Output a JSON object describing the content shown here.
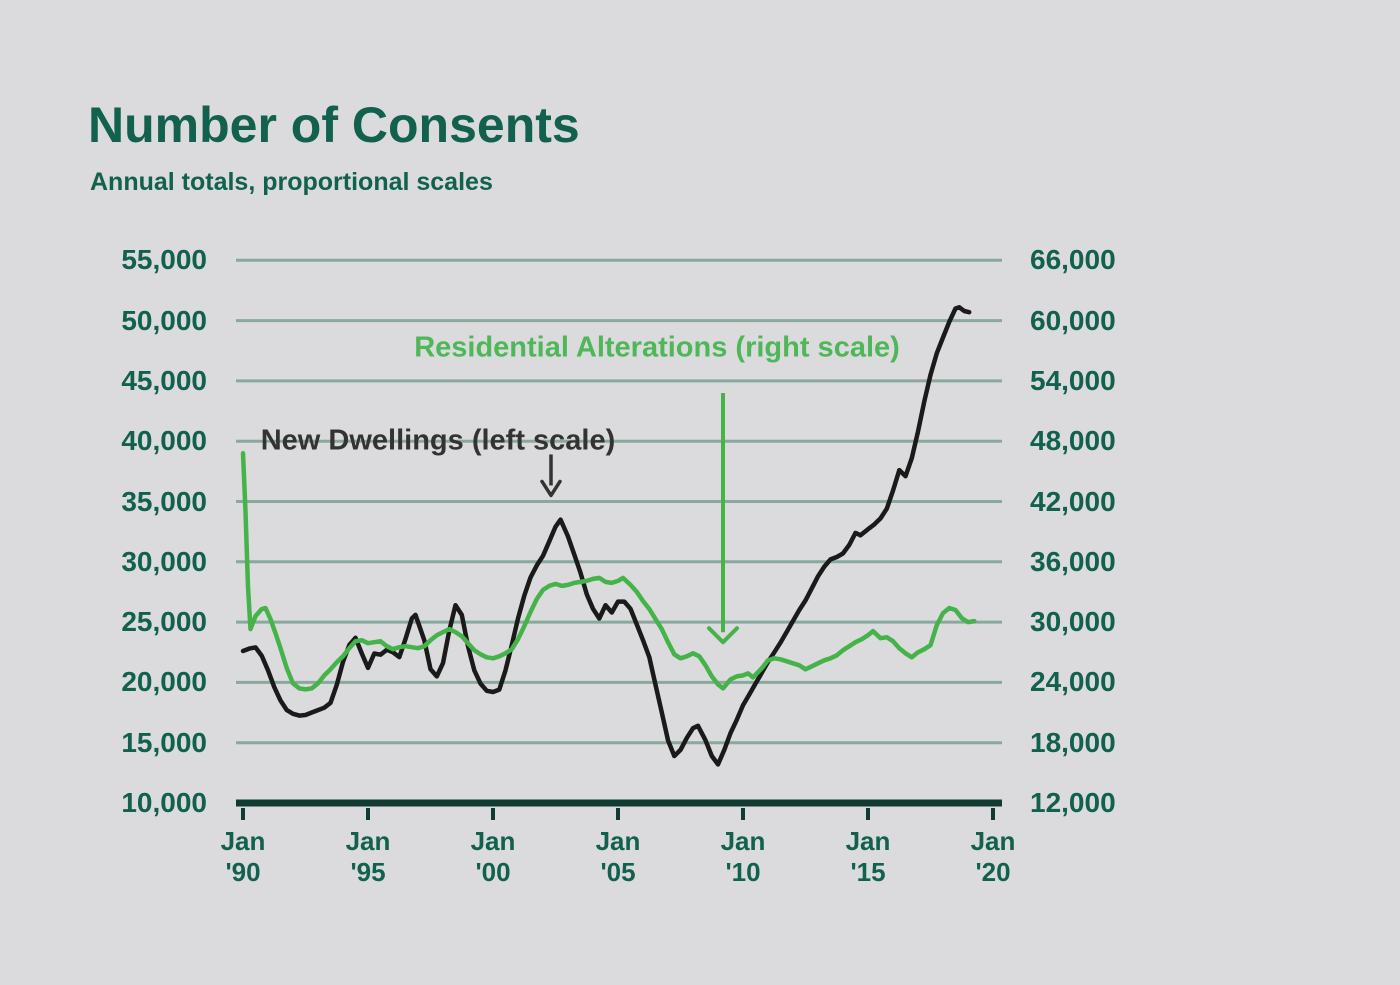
{
  "header": {
    "title": "Number of Consents",
    "subtitle": "Annual totals, proportional scales"
  },
  "colors": {
    "background": "#dbdbdd",
    "heading_text": "#11614e",
    "gridline": "#8aa89c",
    "axis_line": "#113a31",
    "new_dwellings_line": "#1a1a1a",
    "residential_alterations_line": "#45b349",
    "green_label_text": "#4eb757",
    "black_label_text": "#333333"
  },
  "chart_data": {
    "type": "line",
    "title": "Number of Consents",
    "subtitle": "Annual totals, proportional scales",
    "grid": true,
    "legend_position": "inline-annotations",
    "left_axis": {
      "labels": [
        "55,000",
        "50,000",
        "45,000",
        "40,000",
        "35,000",
        "30,000",
        "25,000",
        "20,000",
        "15,000",
        "10,000"
      ],
      "values": [
        55000,
        50000,
        45000,
        40000,
        35000,
        30000,
        25000,
        20000,
        15000,
        10000
      ],
      "range": [
        10000,
        55000
      ]
    },
    "right_axis": {
      "labels": [
        "66,000",
        "60,000",
        "54,000",
        "48,000",
        "42,000",
        "36,000",
        "30,000",
        "24,000",
        "18,000",
        "12,000"
      ],
      "values": [
        66000,
        60000,
        54000,
        48000,
        42000,
        36000,
        30000,
        24000,
        18000,
        12000
      ],
      "range": [
        12000,
        66000
      ]
    },
    "x_axis": {
      "range_years": [
        1990,
        2020
      ],
      "ticks": [
        {
          "line1": "Jan",
          "line2": "'90",
          "year": 1990
        },
        {
          "line1": "Jan",
          "line2": "'95",
          "year": 1995
        },
        {
          "line1": "Jan",
          "line2": "'00",
          "year": 2000
        },
        {
          "line1": "Jan",
          "line2": "'05",
          "year": 2005
        },
        {
          "line1": "Jan",
          "line2": "'10",
          "year": 2010
        },
        {
          "line1": "Jan",
          "line2": "'15",
          "year": 2015
        },
        {
          "line1": "Jan",
          "line2": "'20",
          "year": 2020
        }
      ]
    },
    "annotations": {
      "green_label": {
        "text": "Residential Alterations (right scale)"
      },
      "black_label": {
        "text": "New Dwellings (left scale)"
      },
      "black_arrow": {
        "year": 2002.32,
        "scale": "left",
        "from_value": 38900,
        "to_value": 35500
      },
      "green_arrow": {
        "year": 2009.2,
        "scale": "right",
        "from_value": 52800,
        "to_value": 28000
      }
    },
    "series": [
      {
        "name": "New Dwellings",
        "scale": "left",
        "color": "#1a1a1a",
        "points": [
          [
            1990.0,
            22600
          ],
          [
            1990.25,
            22800
          ],
          [
            1990.5,
            22900
          ],
          [
            1990.75,
            22200
          ],
          [
            1991.0,
            21000
          ],
          [
            1991.25,
            19600
          ],
          [
            1991.5,
            18500
          ],
          [
            1991.75,
            17700
          ],
          [
            1992.0,
            17400
          ],
          [
            1992.25,
            17250
          ],
          [
            1992.5,
            17300
          ],
          [
            1992.75,
            17500
          ],
          [
            1993.0,
            17700
          ],
          [
            1993.25,
            17900
          ],
          [
            1993.5,
            18300
          ],
          [
            1993.75,
            19800
          ],
          [
            1994.0,
            21700
          ],
          [
            1994.25,
            23100
          ],
          [
            1994.5,
            23700
          ],
          [
            1994.75,
            22400
          ],
          [
            1995.0,
            21200
          ],
          [
            1995.25,
            22400
          ],
          [
            1995.5,
            22300
          ],
          [
            1995.75,
            22700
          ],
          [
            1996.0,
            22500
          ],
          [
            1996.25,
            22100
          ],
          [
            1996.5,
            23600
          ],
          [
            1996.75,
            25300
          ],
          [
            1996.9,
            25600
          ],
          [
            1997.25,
            23500
          ],
          [
            1997.5,
            21100
          ],
          [
            1997.75,
            20500
          ],
          [
            1998.0,
            21600
          ],
          [
            1998.25,
            24300
          ],
          [
            1998.5,
            26400
          ],
          [
            1998.75,
            25600
          ],
          [
            1999.0,
            23000
          ],
          [
            1999.25,
            21000
          ],
          [
            1999.5,
            19900
          ],
          [
            1999.75,
            19300
          ],
          [
            2000.0,
            19200
          ],
          [
            2000.25,
            19400
          ],
          [
            2000.5,
            21000
          ],
          [
            2000.75,
            23100
          ],
          [
            2001.0,
            25300
          ],
          [
            2001.25,
            27200
          ],
          [
            2001.5,
            28700
          ],
          [
            2001.75,
            29700
          ],
          [
            2002.0,
            30500
          ],
          [
            2002.25,
            31700
          ],
          [
            2002.5,
            32900
          ],
          [
            2002.7,
            33500
          ],
          [
            2003.0,
            32100
          ],
          [
            2003.25,
            30600
          ],
          [
            2003.5,
            29100
          ],
          [
            2003.75,
            27300
          ],
          [
            2004.0,
            26100
          ],
          [
            2004.25,
            25300
          ],
          [
            2004.5,
            26400
          ],
          [
            2004.75,
            25800
          ],
          [
            2005.0,
            26700
          ],
          [
            2005.25,
            26700
          ],
          [
            2005.5,
            26100
          ],
          [
            2005.75,
            24800
          ],
          [
            2006.0,
            23500
          ],
          [
            2006.25,
            22100
          ],
          [
            2006.5,
            19800
          ],
          [
            2006.75,
            17500
          ],
          [
            2007.0,
            15200
          ],
          [
            2007.25,
            13900
          ],
          [
            2007.5,
            14400
          ],
          [
            2007.75,
            15400
          ],
          [
            2008.0,
            16200
          ],
          [
            2008.2,
            16400
          ],
          [
            2008.5,
            15200
          ],
          [
            2008.75,
            13900
          ],
          [
            2009.0,
            13200
          ],
          [
            2009.25,
            14400
          ],
          [
            2009.5,
            15800
          ],
          [
            2009.75,
            16900
          ],
          [
            2010.0,
            18100
          ],
          [
            2010.25,
            19000
          ],
          [
            2010.5,
            19900
          ],
          [
            2010.75,
            20800
          ],
          [
            2011.0,
            21700
          ],
          [
            2011.25,
            22500
          ],
          [
            2011.5,
            23300
          ],
          [
            2011.75,
            24200
          ],
          [
            2012.0,
            25100
          ],
          [
            2012.25,
            26000
          ],
          [
            2012.5,
            26800
          ],
          [
            2012.75,
            27800
          ],
          [
            2013.0,
            28800
          ],
          [
            2013.25,
            29600
          ],
          [
            2013.5,
            30200
          ],
          [
            2013.75,
            30400
          ],
          [
            2014.0,
            30700
          ],
          [
            2014.25,
            31400
          ],
          [
            2014.5,
            32400
          ],
          [
            2014.7,
            32200
          ],
          [
            2015.0,
            32700
          ],
          [
            2015.25,
            33100
          ],
          [
            2015.5,
            33600
          ],
          [
            2015.75,
            34400
          ],
          [
            2016.0,
            35900
          ],
          [
            2016.25,
            37600
          ],
          [
            2016.5,
            37100
          ],
          [
            2016.75,
            38600
          ],
          [
            2017.0,
            40800
          ],
          [
            2017.25,
            43300
          ],
          [
            2017.5,
            45500
          ],
          [
            2017.75,
            47300
          ],
          [
            2018.0,
            48600
          ],
          [
            2018.25,
            49900
          ],
          [
            2018.5,
            51000
          ],
          [
            2018.65,
            51100
          ],
          [
            2018.85,
            50800
          ],
          [
            2019.05,
            50700
          ]
        ]
      },
      {
        "name": "Residential Alterations",
        "scale": "right",
        "color": "#45b349",
        "points": [
          [
            1990.0,
            46800
          ],
          [
            1990.1,
            41000
          ],
          [
            1990.2,
            33500
          ],
          [
            1990.3,
            29300
          ],
          [
            1990.5,
            30600
          ],
          [
            1990.75,
            31300
          ],
          [
            1990.9,
            31400
          ],
          [
            1991.1,
            30300
          ],
          [
            1991.3,
            28900
          ],
          [
            1991.5,
            27400
          ],
          [
            1991.75,
            25400
          ],
          [
            1992.0,
            23900
          ],
          [
            1992.25,
            23400
          ],
          [
            1992.5,
            23300
          ],
          [
            1992.75,
            23400
          ],
          [
            1993.0,
            23900
          ],
          [
            1993.25,
            24700
          ],
          [
            1993.5,
            25300
          ],
          [
            1993.75,
            26000
          ],
          [
            1994.0,
            26600
          ],
          [
            1994.25,
            27400
          ],
          [
            1994.5,
            28100
          ],
          [
            1994.75,
            28200
          ],
          [
            1995.0,
            27900
          ],
          [
            1995.25,
            28000
          ],
          [
            1995.5,
            28100
          ],
          [
            1995.75,
            27600
          ],
          [
            1996.0,
            27300
          ],
          [
            1996.25,
            27500
          ],
          [
            1996.5,
            27600
          ],
          [
            1996.75,
            27500
          ],
          [
            1997.0,
            27400
          ],
          [
            1997.25,
            27600
          ],
          [
            1997.5,
            28200
          ],
          [
            1997.75,
            28700
          ],
          [
            1998.0,
            29000
          ],
          [
            1998.25,
            29300
          ],
          [
            1998.5,
            29000
          ],
          [
            1998.75,
            28600
          ],
          [
            1999.0,
            27900
          ],
          [
            1999.25,
            27200
          ],
          [
            1999.5,
            26800
          ],
          [
            1999.75,
            26500
          ],
          [
            2000.0,
            26400
          ],
          [
            2000.25,
            26600
          ],
          [
            2000.5,
            26900
          ],
          [
            2000.75,
            27300
          ],
          [
            2001.0,
            28300
          ],
          [
            2001.25,
            29600
          ],
          [
            2001.5,
            31000
          ],
          [
            2001.75,
            32300
          ],
          [
            2002.0,
            33200
          ],
          [
            2002.25,
            33600
          ],
          [
            2002.5,
            33800
          ],
          [
            2002.75,
            33600
          ],
          [
            2003.0,
            33700
          ],
          [
            2003.25,
            33900
          ],
          [
            2003.5,
            34000
          ],
          [
            2003.75,
            34100
          ],
          [
            2004.0,
            34300
          ],
          [
            2004.25,
            34400
          ],
          [
            2004.5,
            34000
          ],
          [
            2004.75,
            33900
          ],
          [
            2005.0,
            34100
          ],
          [
            2005.2,
            34400
          ],
          [
            2005.5,
            33700
          ],
          [
            2005.75,
            33000
          ],
          [
            2006.0,
            32100
          ],
          [
            2006.25,
            31300
          ],
          [
            2006.5,
            30300
          ],
          [
            2006.75,
            29300
          ],
          [
            2007.0,
            28000
          ],
          [
            2007.25,
            26800
          ],
          [
            2007.5,
            26400
          ],
          [
            2007.75,
            26600
          ],
          [
            2008.0,
            26900
          ],
          [
            2008.25,
            26600
          ],
          [
            2008.5,
            25700
          ],
          [
            2008.75,
            24600
          ],
          [
            2009.0,
            23800
          ],
          [
            2009.2,
            23400
          ],
          [
            2009.5,
            24300
          ],
          [
            2009.75,
            24600
          ],
          [
            2010.0,
            24700
          ],
          [
            2010.2,
            24900
          ],
          [
            2010.4,
            24500
          ],
          [
            2010.75,
            25400
          ],
          [
            2011.0,
            26200
          ],
          [
            2011.25,
            26400
          ],
          [
            2011.5,
            26300
          ],
          [
            2011.75,
            26100
          ],
          [
            2012.0,
            25900
          ],
          [
            2012.25,
            25700
          ],
          [
            2012.5,
            25300
          ],
          [
            2012.75,
            25600
          ],
          [
            2013.0,
            25900
          ],
          [
            2013.25,
            26200
          ],
          [
            2013.5,
            26400
          ],
          [
            2013.75,
            26700
          ],
          [
            2014.0,
            27200
          ],
          [
            2014.25,
            27600
          ],
          [
            2014.5,
            28000
          ],
          [
            2014.75,
            28300
          ],
          [
            2015.0,
            28700
          ],
          [
            2015.2,
            29100
          ],
          [
            2015.5,
            28400
          ],
          [
            2015.75,
            28500
          ],
          [
            2016.0,
            28100
          ],
          [
            2016.25,
            27400
          ],
          [
            2016.5,
            26900
          ],
          [
            2016.75,
            26500
          ],
          [
            2017.0,
            27000
          ],
          [
            2017.25,
            27300
          ],
          [
            2017.5,
            27700
          ],
          [
            2017.75,
            29700
          ],
          [
            2018.0,
            30900
          ],
          [
            2018.25,
            31400
          ],
          [
            2018.5,
            31200
          ],
          [
            2018.75,
            30400
          ],
          [
            2019.0,
            30000
          ],
          [
            2019.25,
            30100
          ]
        ]
      }
    ]
  }
}
